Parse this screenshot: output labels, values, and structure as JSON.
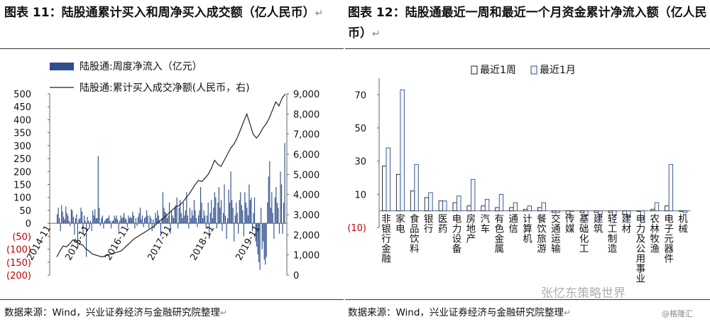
{
  "left_title": "图表 11：陆股通累计买入和周净买入成交额（亿人民币）",
  "right_title": "图表 12：陆股通最近一周和最近一个月资金累计净流入额（亿人民币）",
  "return_mark": "↵",
  "left_source": "数据来源：Wind，兴业证券经济与金融研究院整理",
  "right_source": "数据来源：Wind，兴业证券经济与金融研究院整理",
  "watermark": "张忆东策略世界",
  "watermark2": "@格隆汇",
  "colors": {
    "bar_fill": "#2f4e8c",
    "negative_tick": "#c00000",
    "line": "#222222"
  },
  "chart_data": [
    {
      "type": "bar+line",
      "legend": [
        "陆股通:周度净流入（亿元）",
        "陆股通:累计买入成交净额(人民币，右)"
      ],
      "legend_position": "top",
      "y_left_ticks": [
        "500",
        "450",
        "400",
        "350",
        "300",
        "250",
        "200",
        "150",
        "100",
        "50",
        "0",
        "(50)",
        "(100)",
        "(150)",
        "(200)"
      ],
      "y_left_range": [
        -200,
        500
      ],
      "y_right_ticks": [
        "9,000",
        "8,000",
        "7,000",
        "6,000",
        "5,000",
        "4,000",
        "3,000",
        "2,000",
        "1,000",
        "0"
      ],
      "y_right_range": [
        0,
        9000
      ],
      "x_tick_labels": [
        "2014-11",
        "2015-11",
        "2016-11",
        "2017-11",
        "2018-11",
        "2019-11"
      ],
      "weekly_net_inflow": [
        35,
        60,
        20,
        -30,
        70,
        45,
        25,
        15,
        65,
        40,
        30,
        10,
        -10,
        55,
        50,
        25,
        -45,
        20,
        35,
        -90,
        15,
        20,
        60,
        45,
        -40,
        30,
        10,
        -130,
        25,
        10,
        -20,
        10,
        -30,
        50,
        30,
        55,
        20,
        20,
        260,
        60,
        -10,
        20,
        30,
        -20,
        10,
        15,
        20,
        20,
        30,
        10,
        -20,
        10,
        10,
        30,
        20,
        30,
        15,
        -30,
        10,
        30,
        20,
        25,
        40,
        20,
        15,
        -15,
        30,
        20,
        25,
        20,
        45,
        30,
        -20,
        20,
        -10,
        25,
        40,
        60,
        15,
        30,
        -15,
        20,
        25,
        50,
        30,
        -20,
        30,
        20,
        -30,
        15,
        -20,
        40,
        20,
        50,
        30,
        10,
        -50,
        20,
        120,
        60,
        45,
        40,
        20,
        30,
        80,
        -40,
        50,
        30,
        20,
        60,
        70,
        100,
        -20,
        60,
        90,
        40,
        20,
        80,
        30,
        50,
        120,
        30,
        -20,
        60,
        20,
        50,
        30,
        90,
        50,
        20,
        -15,
        30,
        50,
        140,
        80,
        20,
        50,
        30,
        -20,
        30,
        80,
        -60,
        40,
        90,
        20,
        60,
        120,
        100,
        -20,
        80,
        140,
        60,
        90,
        -30,
        40,
        150,
        30,
        -60,
        20,
        130,
        80,
        200,
        90,
        60,
        -70,
        30,
        80,
        40,
        -40,
        90,
        120,
        70,
        50,
        -50,
        120,
        80,
        60,
        30,
        150,
        90,
        100,
        -30,
        40,
        100,
        -70,
        -90,
        -120,
        -150,
        -180,
        60,
        -100,
        -70,
        -140,
        -160,
        -130,
        80,
        180,
        240,
        60,
        120,
        40,
        -60,
        100,
        140,
        80,
        60,
        -40,
        200,
        150,
        -40,
        80,
        310
      ],
      "cumulative_buy_net": [
        900,
        1200,
        1450,
        1400,
        1550,
        1750,
        1700,
        1550,
        1500,
        1300,
        1200,
        1050,
        1000,
        950,
        900,
        950,
        1000,
        1050,
        1100,
        1150,
        1200,
        1350,
        1500,
        1650,
        1800,
        1900,
        2000,
        2100,
        2200,
        2300,
        2400,
        2550,
        2700,
        2800,
        2950,
        3100,
        3250,
        3400,
        3450,
        3600,
        3800,
        4000,
        4250,
        4500,
        4700,
        4650,
        4800,
        5000,
        5300,
        5700,
        5500,
        5400,
        5700,
        6000,
        6300,
        6500,
        6800,
        7200,
        7600,
        8000,
        7500,
        7000,
        6800,
        7000,
        7300,
        7500,
        7800,
        8200,
        8600,
        8400,
        8800,
        9000
      ]
    },
    {
      "type": "bar",
      "legend": [
        "最近1周",
        "最近1月"
      ],
      "legend_position": "top",
      "y_ticks": [
        "70",
        "50",
        "30",
        "10",
        "(10)"
      ],
      "y_range": [
        -10,
        80
      ],
      "categories": [
        "非银行金融",
        "家电",
        "食品饮料",
        "银行",
        "医药",
        "电力设备",
        "房地产",
        "汽车",
        "有色金属",
        "通信",
        "计算机",
        "餐饮旅游",
        "交通运输",
        "传媒",
        "基础化工",
        "建筑",
        "轻工制造",
        "建材",
        "电力及公用事业",
        "农林牧渔",
        "电子元器件",
        "机械"
      ],
      "series": [
        {
          "name": "最近1周",
          "values": [
            27,
            22,
            12,
            8,
            6,
            5,
            3,
            3,
            2,
            2,
            1,
            2,
            -1,
            -2,
            -1,
            -1,
            -1,
            -2,
            0,
            1,
            3,
            0
          ]
        },
        {
          "name": "最近1月",
          "values": [
            38,
            73,
            28,
            11,
            6,
            9,
            19,
            7,
            10,
            5,
            3,
            5,
            -1,
            0,
            -3,
            -2,
            -3,
            -4,
            -7,
            5,
            28,
            -1
          ]
        }
      ]
    }
  ]
}
